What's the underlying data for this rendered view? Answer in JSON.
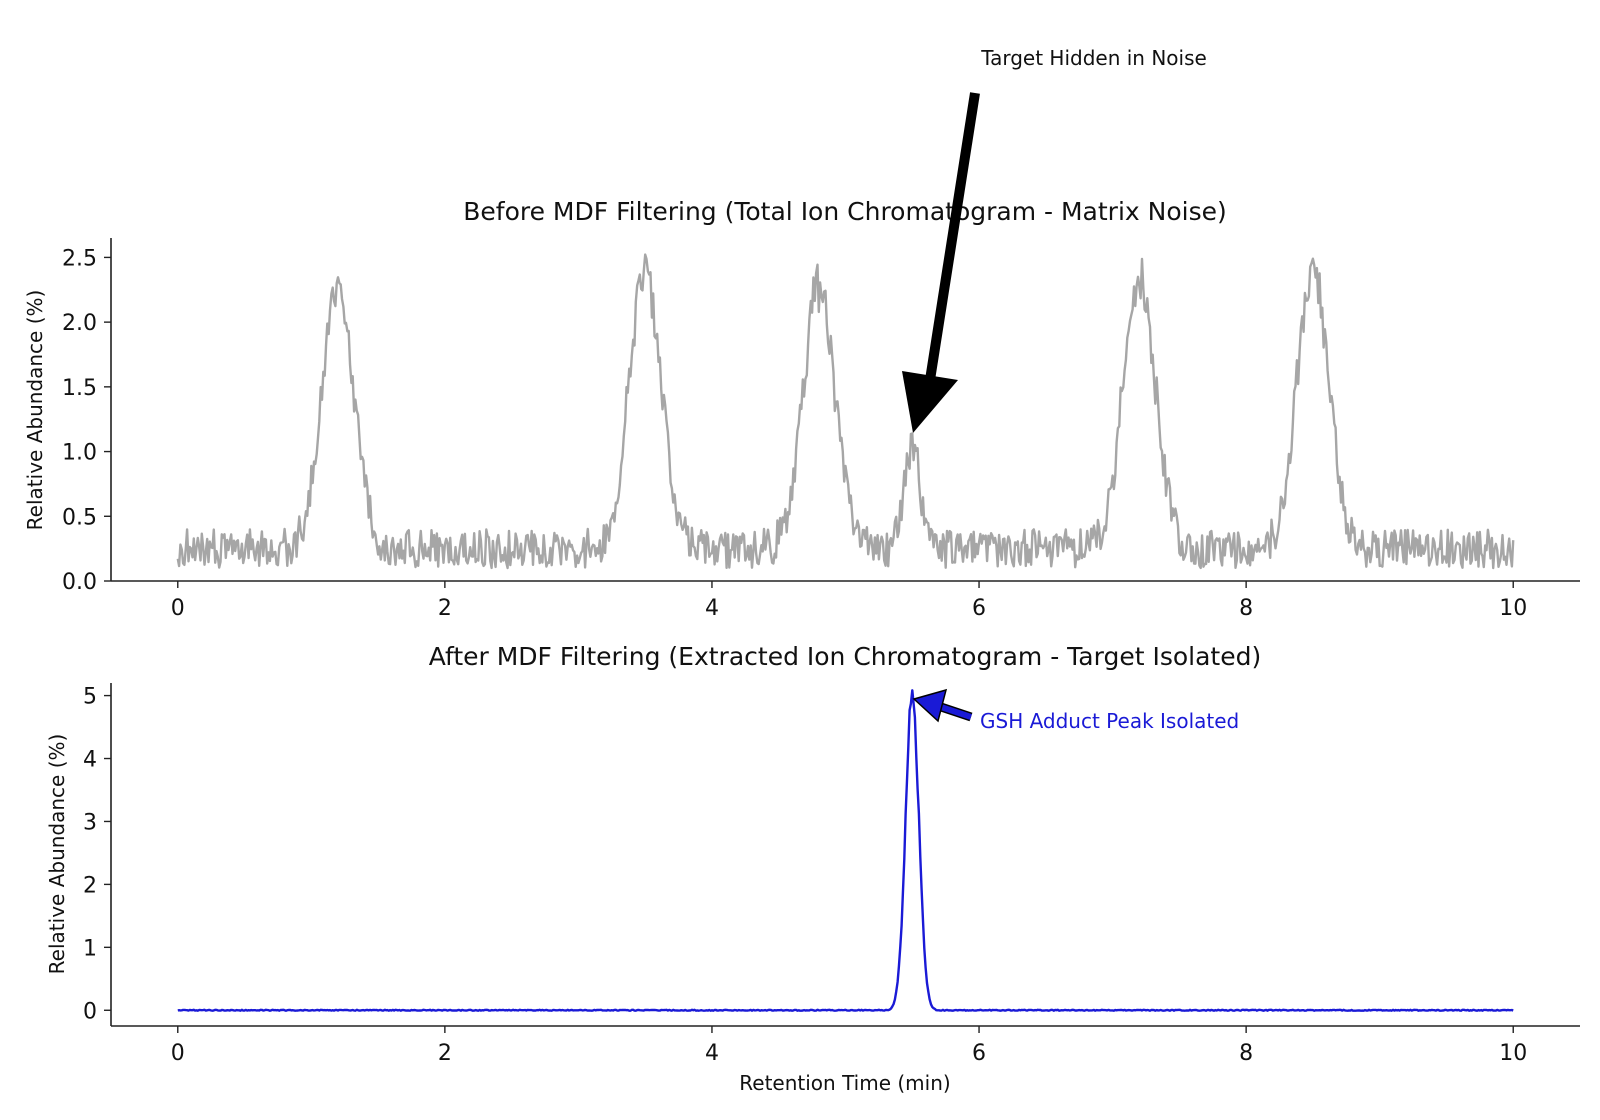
{
  "chart_data": [
    {
      "type": "line",
      "title": "Before MDF Filtering (Total Ion Chromatogram - Matrix Noise)",
      "xlabel": "",
      "ylabel": "Relative Abundance (%)",
      "xlim": [
        -0.5,
        10.5
      ],
      "ylim": [
        0,
        2.65
      ],
      "xticks": [
        0,
        2,
        4,
        6,
        8,
        10
      ],
      "xtick_labels": [
        "0",
        "2",
        "4",
        "6",
        "8",
        "10"
      ],
      "yticks": [
        0.0,
        0.5,
        1.0,
        1.5,
        2.0,
        2.5
      ],
      "ytick_labels": [
        "0.0",
        "0.5",
        "1.0",
        "1.5",
        "2.0",
        "2.5"
      ],
      "grid": false,
      "series": [
        {
          "color": "#a6a6a6",
          "baseline": 0.25,
          "noise_amplitude": 0.3,
          "x_range": [
            0,
            10
          ],
          "peaks": [
            {
              "x": 1.2,
              "height": 2.3,
              "width": 0.12
            },
            {
              "x": 3.5,
              "height": 2.4,
              "width": 0.12
            },
            {
              "x": 4.8,
              "height": 2.25,
              "width": 0.12
            },
            {
              "x": 5.5,
              "height": 1.05,
              "width": 0.06
            },
            {
              "x": 7.2,
              "height": 2.35,
              "width": 0.12
            },
            {
              "x": 8.5,
              "height": 2.4,
              "width": 0.12
            }
          ]
        }
      ],
      "annotations": [
        {
          "text": "Target Hidden in Noise",
          "arrow_to": {
            "x": 5.5,
            "y": 1.15
          },
          "color": "#000000"
        }
      ]
    },
    {
      "type": "line",
      "title": "After MDF Filtering (Extracted Ion Chromatogram - Target Isolated)",
      "xlabel": "Retention Time (min)",
      "ylabel": "Relative Abundance (%)",
      "xlim": [
        -0.5,
        10.5
      ],
      "ylim": [
        -0.25,
        5.2
      ],
      "xticks": [
        0,
        2,
        4,
        6,
        8,
        10
      ],
      "xtick_labels": [
        "0",
        "2",
        "4",
        "6",
        "8",
        "10"
      ],
      "yticks": [
        0,
        1,
        2,
        3,
        4,
        5
      ],
      "ytick_labels": [
        "0",
        "1",
        "2",
        "3",
        "4",
        "5"
      ],
      "grid": false,
      "series": [
        {
          "color": "#1a1ad6",
          "baseline": 0.0,
          "noise_amplitude": 0.015,
          "x_range": [
            0,
            10
          ],
          "peaks": [
            {
              "x": 5.5,
              "height": 5.0,
              "width": 0.05
            }
          ]
        }
      ],
      "annotations": [
        {
          "text": "GSH Adduct Peak Isolated",
          "arrow_to": {
            "x": 5.5,
            "y": 5.0
          },
          "color": "#1a1ad6"
        }
      ]
    }
  ]
}
